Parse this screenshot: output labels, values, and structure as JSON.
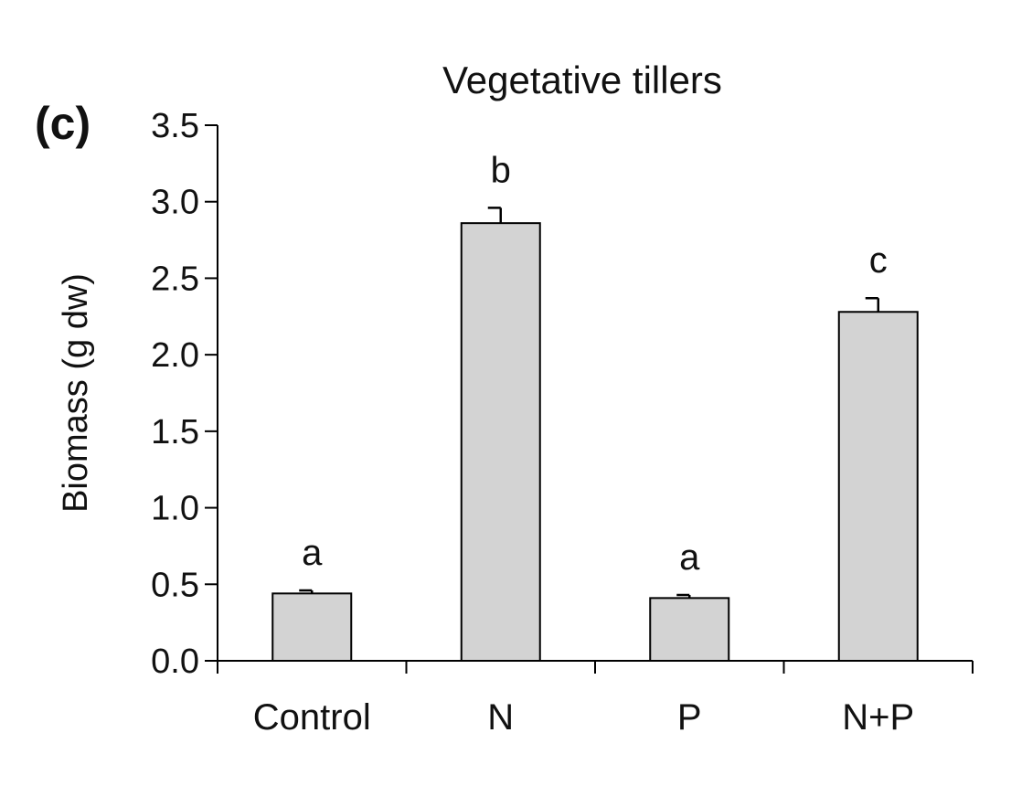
{
  "panel_label": "(c)",
  "chart_data": {
    "type": "bar",
    "title": "Vegetative tillers",
    "xlabel": "",
    "ylabel": "Biomass (g dw)",
    "ylim": [
      0,
      3.5
    ],
    "yticks": [
      "0.0",
      "0.5",
      "1.0",
      "1.5",
      "2.0",
      "2.5",
      "3.0",
      "3.5"
    ],
    "categories": [
      "Control",
      "N",
      "P",
      "N+P"
    ],
    "values": [
      0.44,
      2.86,
      0.41,
      2.28
    ],
    "errors": [
      0.02,
      0.1,
      0.02,
      0.09
    ],
    "significance_letters": [
      "a",
      "b",
      "a",
      "c"
    ],
    "bar_color": "#d3d3d3",
    "grid": false,
    "legend": "none"
  }
}
